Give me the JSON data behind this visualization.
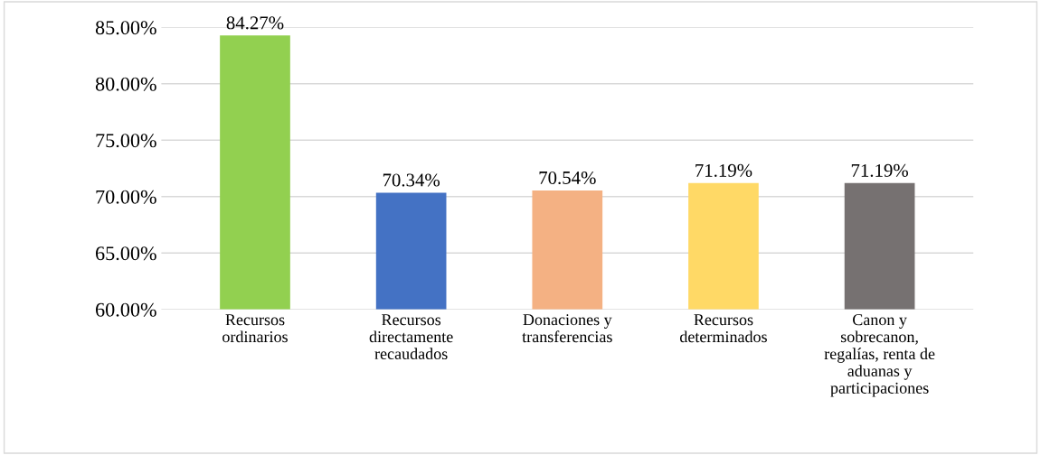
{
  "chart_data": {
    "type": "bar",
    "categories": [
      "Recursos\nordinarios",
      "Recursos\ndirectamente\nrecaudados",
      "Donaciones y\ntransferencias",
      "Recursos\ndeterminados",
      "Canon y\nsobrecanon,\nregalías, renta de\naduanas y\nparticipaciones"
    ],
    "values": [
      84.27,
      70.34,
      70.54,
      71.19,
      71.19
    ],
    "colors": [
      "#92d050",
      "#4472c4",
      "#f4b183",
      "#ffd966",
      "#767171"
    ],
    "value_labels": [
      "84.27%",
      "70.34%",
      "70.54%",
      "71.19%",
      "71.19%"
    ],
    "ylim": [
      60,
      85
    ],
    "yticks": [
      {
        "value": 60,
        "label": "60.00%"
      },
      {
        "value": 65,
        "label": "65.00%"
      },
      {
        "value": 70,
        "label": "70.00%"
      },
      {
        "value": 75,
        "label": "75.00%"
      },
      {
        "value": 80,
        "label": "80.00%"
      },
      {
        "value": 85,
        "label": "85.00%"
      }
    ],
    "grid": "y"
  }
}
